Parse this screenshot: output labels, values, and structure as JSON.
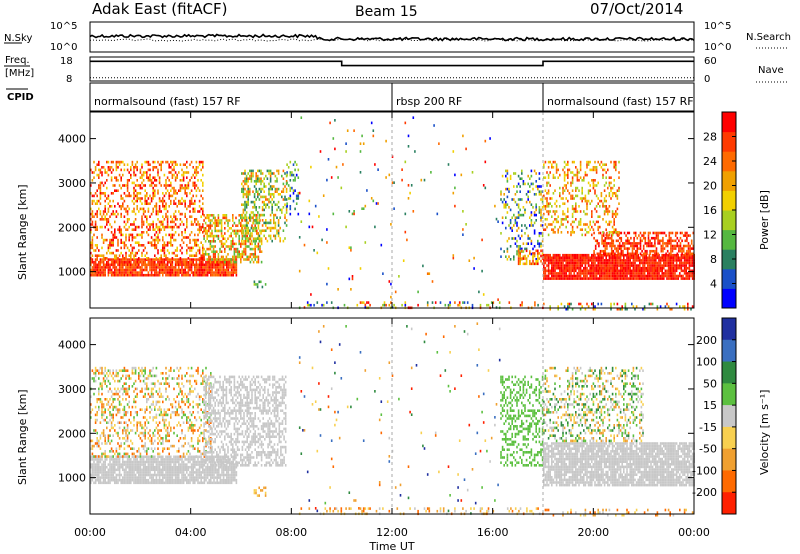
{
  "header": {
    "station": "Adak East (fitACF)",
    "beam": "Beam 15",
    "date": "07/Oct/2014"
  },
  "panels": {
    "nsky": {
      "left_label": "N.Sky",
      "left_ticks": [
        "10^5",
        "10^0"
      ],
      "right_label": "N.Search",
      "right_ticks": [
        "10^5",
        "10^0"
      ]
    },
    "freq": {
      "left_label_1": "Freq.",
      "left_label_2": "[MHz]",
      "left_ticks": [
        "18",
        "8"
      ],
      "right_label": "Nave",
      "right_ticks": [
        "60",
        "0"
      ],
      "freq_segments": [
        {
          "start_hour": 0,
          "end_hour": 10,
          "mhz": 16.2
        },
        {
          "start_hour": 10,
          "end_hour": 18,
          "mhz": 14.4
        },
        {
          "start_hour": 18,
          "end_hour": 24,
          "mhz": 16.2
        }
      ],
      "nave_level": 8,
      "freq_range": [
        8,
        18
      ],
      "nave_range": [
        0,
        60
      ]
    },
    "cpid": {
      "label": "CPID",
      "segments": [
        {
          "name": "normalsound (fast) 157 RF",
          "start_hour": 0,
          "end_hour": 12
        },
        {
          "name": "rbsp 200 RF",
          "start_hour": 12,
          "end_hour": 18
        },
        {
          "name": "normalsound (fast) 157 RF",
          "start_hour": 18,
          "end_hour": 24
        }
      ]
    }
  },
  "chart_data": [
    {
      "type": "heatmap",
      "name": "power",
      "ylabel": "Slant Range [km]",
      "yticks": [
        1000,
        2000,
        3000,
        4000
      ],
      "ylim": [
        180,
        4600
      ],
      "xlim": [
        0,
        24
      ],
      "colorbar_label": "Power [dB]",
      "colorbar_ticks": [
        "4",
        "8",
        "12",
        "16",
        "20",
        "24",
        "28"
      ],
      "colorbar_colors": [
        "#0000ff",
        "#1a50c8",
        "#2a8060",
        "#55b840",
        "#a8d020",
        "#f2d000",
        "#f0a000",
        "#ff6a00",
        "#ff3a00",
        "#ff0000"
      ],
      "colorbar_range": [
        0,
        32
      ],
      "scatter_bands": [
        {
          "start_hour": 0,
          "end_hour": 5.8,
          "range_start": 900,
          "range_end": 1300,
          "density": 0.9,
          "color_index": [
            7,
            9
          ]
        },
        {
          "start_hour": 0,
          "end_hour": 4.5,
          "range_start": 1300,
          "range_end": 3500,
          "density": 0.35,
          "color_index": [
            5,
            9
          ]
        },
        {
          "start_hour": 4.5,
          "end_hour": 6.8,
          "range_start": 1200,
          "range_end": 2300,
          "density": 0.5,
          "color_index": [
            3,
            8
          ]
        },
        {
          "start_hour": 6.0,
          "end_hour": 7.8,
          "range_start": 1700,
          "range_end": 3300,
          "density": 0.4,
          "color_index": [
            2,
            7
          ]
        },
        {
          "start_hour": 7.8,
          "end_hour": 8.3,
          "range_start": 2300,
          "range_end": 3500,
          "density": 0.3,
          "color_index": [
            0,
            4
          ]
        },
        {
          "start_hour": 6.5,
          "end_hour": 7.0,
          "range_start": 650,
          "range_end": 800,
          "density": 0.5,
          "color_index": [
            2,
            4
          ]
        },
        {
          "start_hour": 8.3,
          "end_hour": 16.3,
          "range_start": 200,
          "range_end": 4500,
          "density": 0.015,
          "color_index": [
            0,
            9
          ]
        },
        {
          "start_hour": 8.3,
          "end_hour": 18.0,
          "range_start": 180,
          "range_end": 330,
          "density": 0.2,
          "color_index": [
            0,
            9
          ]
        },
        {
          "start_hour": 16.3,
          "end_hour": 18.0,
          "range_start": 1300,
          "range_end": 3300,
          "density": 0.25,
          "color_index": [
            0,
            6
          ]
        },
        {
          "start_hour": 17.0,
          "end_hour": 18.0,
          "range_start": 1200,
          "range_end": 1500,
          "density": 0.55,
          "color_index": [
            5,
            9
          ]
        },
        {
          "start_hour": 18.0,
          "end_hour": 24.0,
          "range_start": 850,
          "range_end": 1400,
          "density": 0.92,
          "color_index": [
            8,
            9
          ]
        },
        {
          "start_hour": 20.0,
          "end_hour": 24.0,
          "range_start": 1400,
          "range_end": 1900,
          "density": 0.55,
          "color_index": [
            7,
            9
          ]
        },
        {
          "start_hour": 18.0,
          "end_hour": 21.0,
          "range_start": 1800,
          "range_end": 3500,
          "density": 0.3,
          "color_index": [
            4,
            8
          ]
        },
        {
          "start_hour": 18.0,
          "end_hour": 24.0,
          "range_start": 180,
          "range_end": 300,
          "density": 0.25,
          "color_index": [
            0,
            9
          ]
        }
      ]
    },
    {
      "type": "heatmap",
      "name": "velocity",
      "xlabel": "Time UT",
      "ylabel": "Slant Range [km]",
      "yticks": [
        1000,
        2000,
        3000,
        4000
      ],
      "ylim": [
        180,
        4600
      ],
      "xlim": [
        0,
        24
      ],
      "xticks": [
        "00:00",
        "04:00",
        "08:00",
        "12:00",
        "16:00",
        "20:00",
        "00:00"
      ],
      "colorbar_label": "Velocity [m s⁻¹]",
      "colorbar_ticks": [
        "200",
        "100",
        "50",
        "15",
        "-15",
        "-50",
        "-100",
        "-200"
      ],
      "colorbar_colors": [
        "#2030a0",
        "#3a6fc0",
        "#2f8a40",
        "#5cc040",
        "#c8c8c8",
        "#f8d050",
        "#f0a030",
        "#ff6a00",
        "#ff2000"
      ],
      "colorbar_range": [
        -250,
        250
      ],
      "scatter_bands": [
        {
          "start_hour": 0,
          "end_hour": 5.8,
          "range_start": 900,
          "range_end": 1500,
          "density": 0.85,
          "color_index": [
            4,
            4
          ]
        },
        {
          "start_hour": 0,
          "end_hour": 4.8,
          "range_start": 1500,
          "range_end": 3500,
          "density": 0.3,
          "color_index": [
            3,
            7
          ]
        },
        {
          "start_hour": 4.5,
          "end_hour": 7.8,
          "range_start": 1300,
          "range_end": 3300,
          "density": 0.5,
          "color_index": [
            4,
            4
          ]
        },
        {
          "start_hour": 6.5,
          "end_hour": 7.0,
          "range_start": 600,
          "range_end": 800,
          "density": 0.5,
          "color_index": [
            5,
            6
          ]
        },
        {
          "start_hour": 8.3,
          "end_hour": 16.3,
          "range_start": 200,
          "range_end": 4500,
          "density": 0.015,
          "color_index": [
            0,
            8
          ]
        },
        {
          "start_hour": 8.3,
          "end_hour": 18.0,
          "range_start": 180,
          "range_end": 330,
          "density": 0.2,
          "color_index": [
            4,
            7
          ]
        },
        {
          "start_hour": 16.3,
          "end_hour": 18.0,
          "range_start": 1300,
          "range_end": 3300,
          "density": 0.35,
          "color_index": [
            3,
            3
          ]
        },
        {
          "start_hour": 18.0,
          "end_hour": 24.0,
          "range_start": 850,
          "range_end": 1800,
          "density": 0.85,
          "color_index": [
            4,
            4
          ]
        },
        {
          "start_hour": 18.0,
          "end_hour": 22.0,
          "range_start": 1800,
          "range_end": 3500,
          "density": 0.3,
          "color_index": [
            2,
            6
          ]
        },
        {
          "start_hour": 18.0,
          "end_hour": 24.0,
          "range_start": 180,
          "range_end": 300,
          "density": 0.2,
          "color_index": [
            4,
            7
          ]
        }
      ]
    }
  ]
}
